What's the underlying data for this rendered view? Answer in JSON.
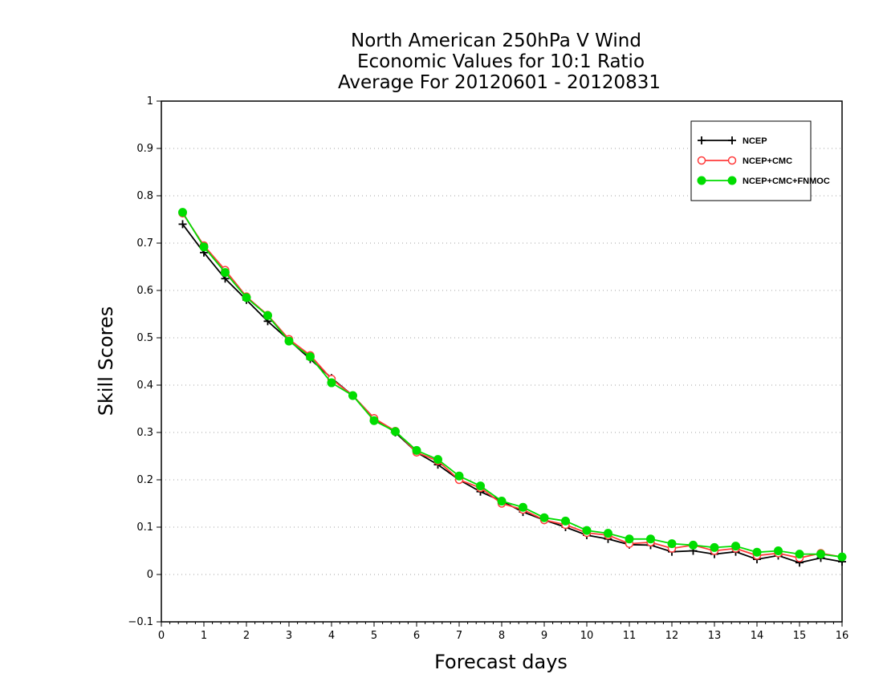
{
  "chart_data": {
    "type": "line",
    "title": [
      "North American 250hPa V Wind",
      "Economic Values for 10:1 Ratio",
      "Average For 20120601 - 20120831"
    ],
    "xlabel": "Forecast days",
    "ylabel": "Skill Scores",
    "xlim": [
      0,
      16
    ],
    "ylim": [
      -0.1,
      1
    ],
    "x_ticks": [
      "0",
      "1",
      "2",
      "3",
      "4",
      "5",
      "6",
      "7",
      "8",
      "9",
      "10",
      "11",
      "12",
      "13",
      "14",
      "15",
      "16"
    ],
    "y_ticks": [
      "−0.1",
      "0",
      "0.1",
      "0.2",
      "0.3",
      "0.4",
      "0.5",
      "0.6",
      "0.7",
      "0.8",
      "0.9",
      "1"
    ],
    "grid": "dotted horizontal",
    "legend_position": "top-right",
    "x": [
      0.5,
      1,
      1.5,
      2,
      2.5,
      3,
      3.5,
      4,
      4.5,
      5,
      5.5,
      6,
      6.5,
      7,
      7.5,
      8,
      8.5,
      9,
      9.5,
      10,
      10.5,
      11,
      11.5,
      12,
      12.5,
      13,
      13.5,
      14,
      14.5,
      15,
      15.5,
      16
    ],
    "series": [
      {
        "name": "NCEP",
        "color": "#000000",
        "marker": "plus",
        "values": [
          0.74,
          0.68,
          0.625,
          0.58,
          0.535,
          0.495,
          0.455,
          0.415,
          0.378,
          0.33,
          0.3,
          0.258,
          0.232,
          0.2,
          0.175,
          0.155,
          0.132,
          0.115,
          0.1,
          0.083,
          0.075,
          0.063,
          0.062,
          0.048,
          0.05,
          0.043,
          0.048,
          0.032,
          0.04,
          0.025,
          0.035,
          0.027
        ]
      },
      {
        "name": "NCEP+CMC",
        "color": "#ff3b3b",
        "marker": "open-circle",
        "values": [
          0.763,
          0.695,
          0.643,
          0.587,
          0.548,
          0.497,
          0.463,
          0.413,
          0.378,
          0.33,
          0.303,
          0.258,
          0.24,
          0.2,
          0.183,
          0.15,
          0.137,
          0.115,
          0.105,
          0.088,
          0.083,
          0.065,
          0.068,
          0.055,
          0.062,
          0.05,
          0.055,
          0.04,
          0.045,
          0.035,
          0.045,
          0.037
        ]
      },
      {
        "name": "NCEP+CMC+FNMOC",
        "color": "#00dd00",
        "marker": "filled-circle",
        "values": [
          0.765,
          0.692,
          0.638,
          0.585,
          0.547,
          0.493,
          0.46,
          0.405,
          0.378,
          0.325,
          0.302,
          0.262,
          0.243,
          0.208,
          0.187,
          0.155,
          0.142,
          0.12,
          0.113,
          0.093,
          0.087,
          0.075,
          0.075,
          0.065,
          0.062,
          0.057,
          0.06,
          0.047,
          0.05,
          0.043,
          0.043,
          0.037
        ]
      }
    ]
  }
}
